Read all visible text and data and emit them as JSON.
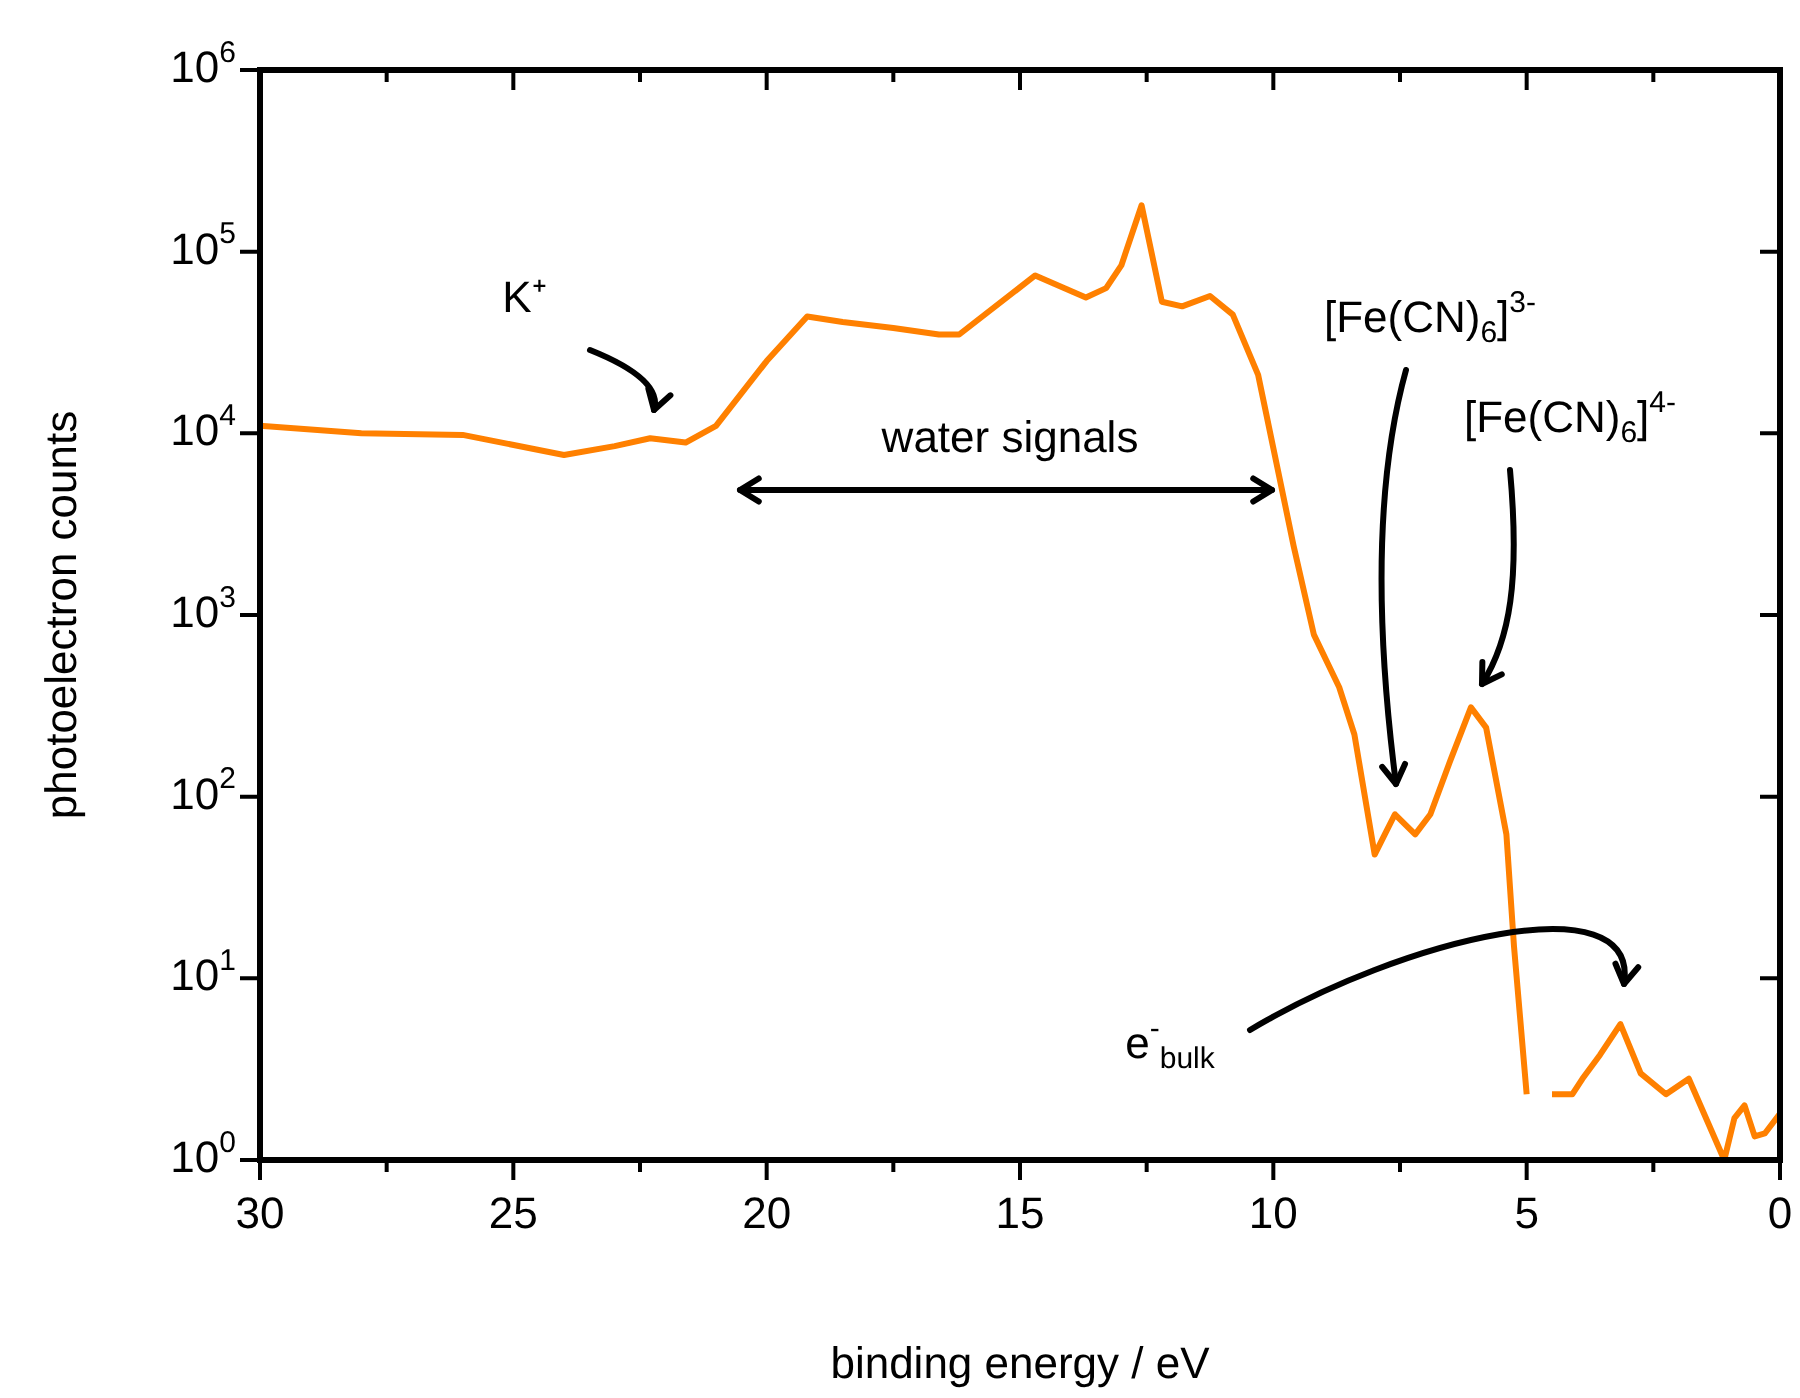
{
  "chart_data": {
    "type": "line",
    "xlabel": "binding energy / eV",
    "ylabel": "photoelectron counts",
    "log": "y",
    "xlim": [
      30,
      0
    ],
    "ylim": [
      1,
      1000000
    ],
    "xticks": [
      30,
      {
        "value": 27.5,
        "label": null
      },
      25,
      {
        "value": 22.5,
        "label": null
      },
      20,
      {
        "value": 17.5,
        "label": null
      },
      15,
      {
        "value": 12.5,
        "label": null
      },
      10,
      {
        "value": 7.5,
        "label": null
      },
      5,
      {
        "value": 2.5,
        "label": null
      },
      0
    ],
    "yticks": [
      {
        "value": 1,
        "label": "10$^{0}$"
      },
      {
        "value": 10,
        "label": "10$^{1}$"
      },
      {
        "value": 100,
        "label": "10$^{2}$"
      },
      {
        "value": 1000,
        "label": "10$^{3}$"
      },
      {
        "value": 10000,
        "label": "10$^{4}$"
      },
      {
        "value": 100000,
        "label": "10$^{5}$"
      },
      {
        "value": 1000000,
        "label": "10$^{6}$"
      }
    ],
    "x": [
      30,
      28,
      26,
      24,
      23,
      22.3,
      21.6,
      21,
      20,
      19.2,
      18.5,
      17.5,
      16.6,
      16.2,
      14.7,
      13.7,
      13.3,
      13,
      12.6,
      12.2,
      11.8,
      11.25,
      10.8,
      10.3,
      10,
      9.6,
      9.2,
      8.7,
      8.4,
      8,
      7.8,
      7.6,
      7.2,
      6.9,
      6.5,
      6.1,
      5.8,
      5.4,
      5.25,
      5,
      4.8,
      4.5,
      4.1,
      3.9,
      3.55,
      3.15,
      2.75,
      2.25,
      1.8,
      1.1,
      0.9,
      0.7,
      0.5,
      0.3,
      0
    ],
    "series": [
      {
        "color": "#ff8000",
        "values": [
          11000,
          10000,
          9800,
          7600,
          8500,
          9400,
          8900,
          11000,
          25000,
          44000,
          41000,
          38000,
          35000,
          35000,
          74000,
          56000,
          63000,
          84000,
          180000,
          53000,
          50000,
          57000,
          45000,
          21000,
          8300,
          2400,
          780,
          400,
          220,
          48,
          62,
          80,
          62,
          80,
          160,
          310,
          240,
          62,
          15,
          2.3,
          null,
          2.3,
          2.3,
          2.8,
          3.8,
          5.6,
          3,
          2.3,
          2.8,
          1,
          1.7,
          2,
          1.35,
          1.4,
          1.8
        ]
      }
    ],
    "annotations": [
      "K⁺",
      "water signals",
      "[Fe(CN)$_{6}$]$^{3-}$",
      "[Fe(CN)$_{6}$]$^{4-}$",
      "e$^{-}$$_{bulk}$"
    ]
  }
}
